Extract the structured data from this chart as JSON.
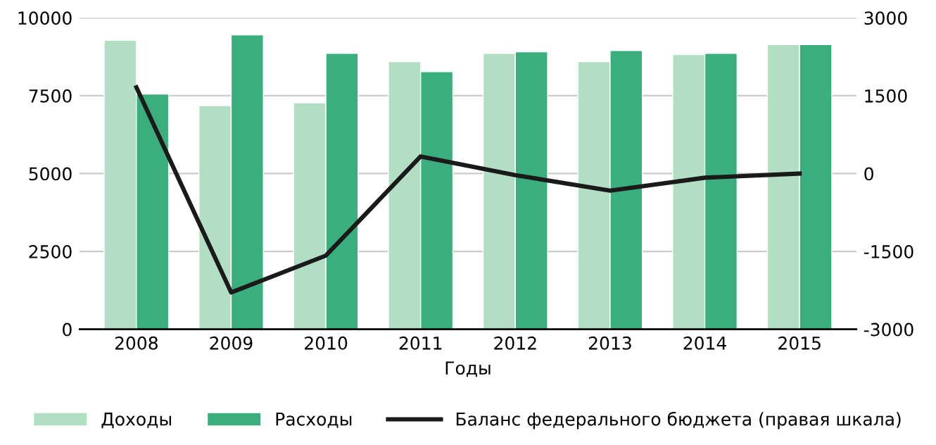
{
  "chart_data": {
    "type": "bar",
    "xlabel": "Годы",
    "categories": [
      "2008",
      "2009",
      "2010",
      "2011",
      "2012",
      "2013",
      "2014",
      "2015"
    ],
    "series": [
      {
        "name": "Доходы",
        "color": "#b2dfc4",
        "values": [
          9280,
          7180,
          7270,
          8590,
          8860,
          8590,
          8820,
          9140
        ]
      },
      {
        "name": "Расходы",
        "color": "#3aaf7d",
        "values": [
          7550,
          9450,
          8860,
          8270,
          8910,
          8950,
          8860,
          9140
        ]
      },
      {
        "name": "Баланс федерального бюджета (правая шкала)",
        "type": "line",
        "axis": "y2",
        "color": "#1a1a1a",
        "values": [
          1660,
          -2290,
          -1580,
          330,
          -30,
          -330,
          -80,
          0
        ]
      }
    ],
    "ylim": [
      0,
      10000
    ],
    "yticks": [
      0,
      2500,
      5000,
      7500,
      10000
    ],
    "y2lim": [
      -3000,
      3000
    ],
    "y2ticks": [
      -3000,
      -1500,
      0,
      1500,
      3000
    ],
    "grid": "y",
    "legend": "bottom"
  }
}
